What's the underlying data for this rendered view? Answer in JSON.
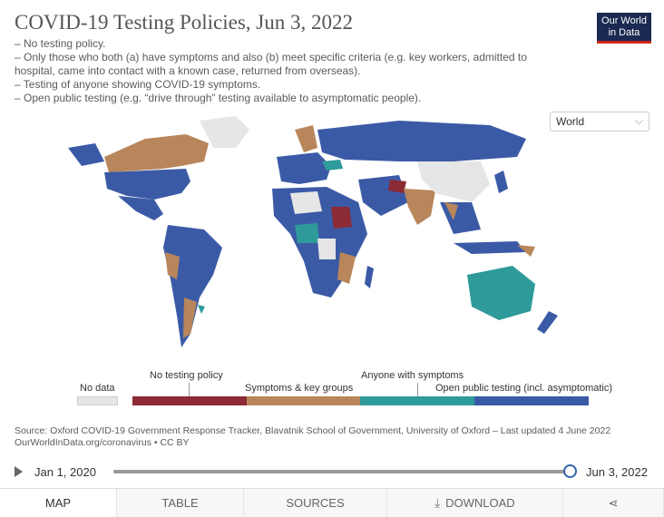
{
  "header": {
    "title": "COVID-19 Testing Policies, Jun 3, 2022",
    "subtitle_lines": [
      "– No testing policy.",
      "– Only those who both (a) have symptoms and also (b) meet specific criteria (e.g. key workers, admitted to hospital, came into contact with a known case, returned from overseas).",
      "– Testing of anyone showing COVID-19 symptoms.",
      "– Open public testing (e.g. “drive through” testing available to asymptomatic people)."
    ],
    "logo_line1": "Our World",
    "logo_line2": "in Data"
  },
  "region_select": {
    "value": "World"
  },
  "colors": {
    "no_data": "#e6e6e6",
    "no_testing": "#8c2a35",
    "symptoms_key_groups": "#b8865a",
    "anyone_symptoms": "#2e9a9a",
    "open_public": "#3b5aa6"
  },
  "legend": {
    "no_data": "No data",
    "no_testing": "No testing policy",
    "symptoms_key_groups": "Symptoms & key groups",
    "anyone_symptoms": "Anyone with symptoms",
    "open_public": "Open public testing (incl. asymptomatic)"
  },
  "source": {
    "line1": "Source: Oxford COVID-19 Government Response Tracker, Blavatnik School of Government, University of Oxford – Last updated 4 June 2022",
    "line2": "OurWorldInData.org/coronavirus • CC BY"
  },
  "timeline": {
    "start": "Jan 1, 2020",
    "end": "Jun 3, 2022",
    "position": 1.0
  },
  "tabs": [
    "MAP",
    "TABLE",
    "SOURCES",
    "DOWNLOAD",
    ""
  ],
  "icons": {
    "play": "play-icon",
    "download": "download-icon",
    "share": "share-icon",
    "dropdown": "chevron-down-icon"
  }
}
